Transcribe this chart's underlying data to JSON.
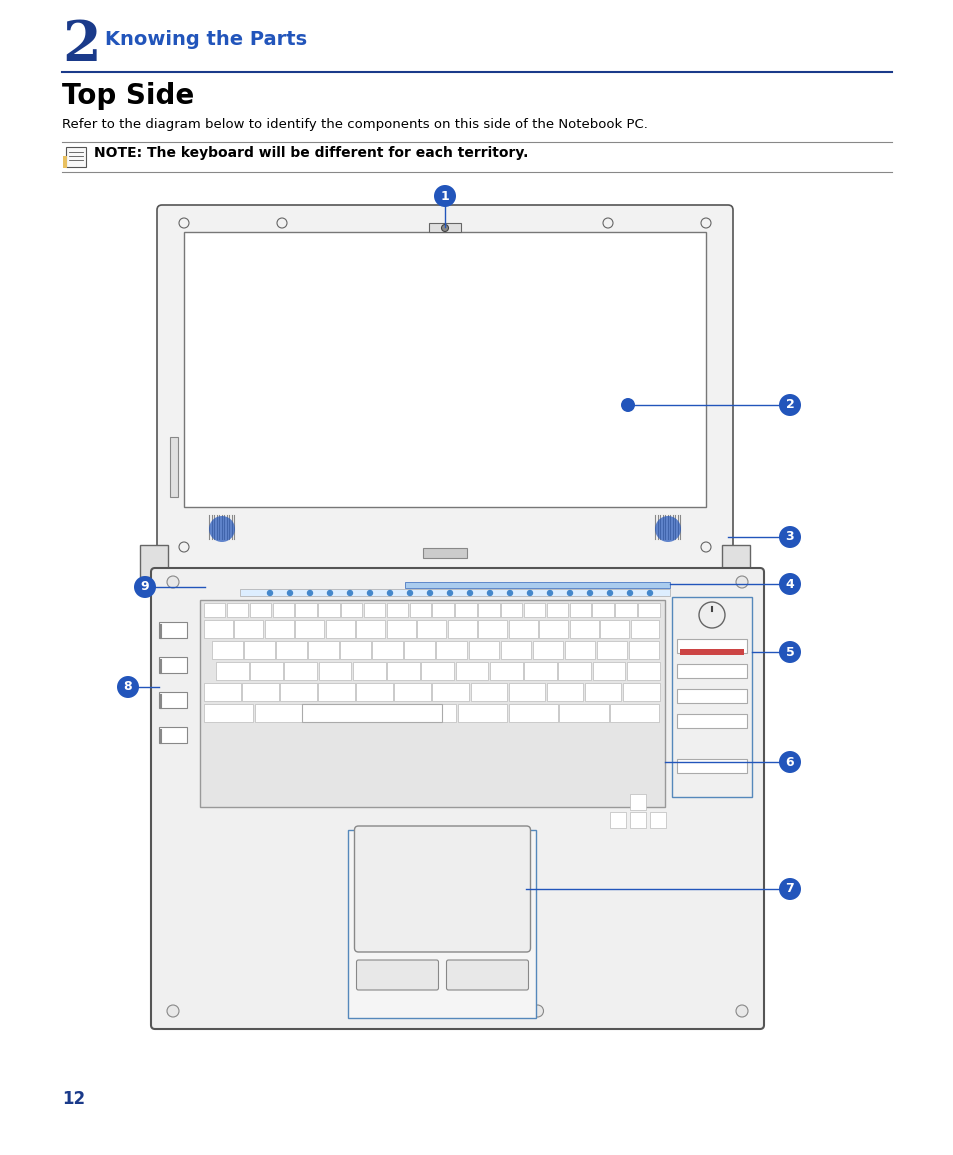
{
  "title_number": "2",
  "title_text": "Knowing the Parts",
  "section_title": "Top Side",
  "description": "Refer to the diagram below to identify the components on this side of the Notebook PC.",
  "note_text": "NOTE: The keyboard will be different for each territory.",
  "page_number": "12",
  "accent_color": "#1a3a8a",
  "blue_label_color": "#2255bb",
  "body_text_color": "#000000",
  "bg_color": "#ffffff",
  "gray_line": "#aaaaaa",
  "dark_gray": "#555555",
  "mid_gray": "#888888",
  "light_gray": "#dddddd",
  "screen_bg": "#f8f8f8",
  "kb_bg": "#f0f0f0",
  "white": "#ffffff"
}
